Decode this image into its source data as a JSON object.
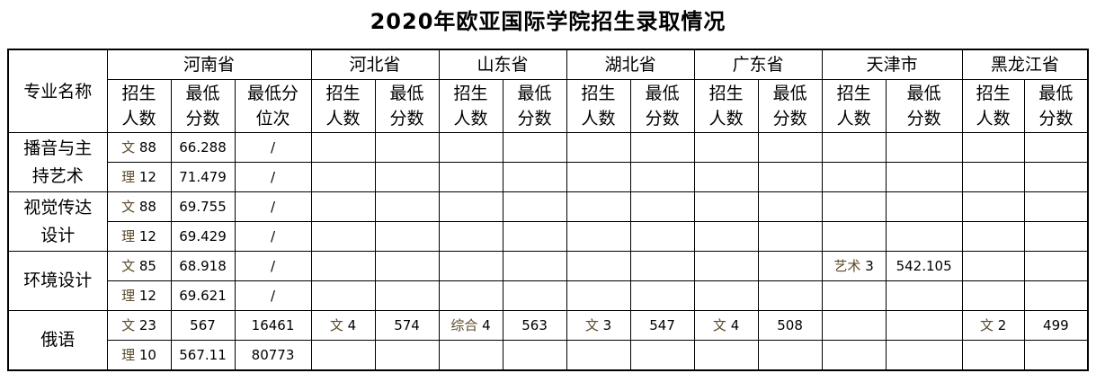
{
  "title": "2020年欧亚国际学院招生录取情况",
  "header": {
    "major_col": "专业名称",
    "provinces": [
      {
        "name": "河南省",
        "cols": [
          "招生\n人数",
          "最低\n分数",
          "最低分\n位次"
        ]
      },
      {
        "name": "河北省",
        "cols": [
          "招生\n人数",
          "最低\n分数"
        ]
      },
      {
        "name": "山东省",
        "cols": [
          "招生\n人数",
          "最低\n分数"
        ]
      },
      {
        "name": "湖北省",
        "cols": [
          "招生\n人数",
          "最低\n分数"
        ]
      },
      {
        "name": "广东省",
        "cols": [
          "招生\n人数",
          "最低\n分数"
        ]
      },
      {
        "name": "天津市",
        "cols": [
          "招生\n人数",
          "最低\n分数"
        ]
      },
      {
        "name": "黑龙江省",
        "cols": [
          "招生\n人数",
          "最低\n分数"
        ]
      }
    ]
  },
  "majors": [
    {
      "name": "播音与主\n持艺术",
      "rows": [
        [
          "文 88",
          "66.288",
          "/",
          "",
          "",
          "",
          "",
          "",
          "",
          "",
          "",
          "",
          "",
          "",
          ""
        ],
        [
          "理 12",
          "71.479",
          "/",
          "",
          "",
          "",
          "",
          "",
          "",
          "",
          "",
          "",
          "",
          "",
          ""
        ]
      ]
    },
    {
      "name": "视觉传达\n设计",
      "rows": [
        [
          "文 88",
          "69.755",
          "/",
          "",
          "",
          "",
          "",
          "",
          "",
          "",
          "",
          "",
          "",
          "",
          ""
        ],
        [
          "理 12",
          "69.429",
          "/",
          "",
          "",
          "",
          "",
          "",
          "",
          "",
          "",
          "",
          "",
          "",
          ""
        ]
      ]
    },
    {
      "name": "环境设计",
      "rows": [
        [
          "文 85",
          "68.918",
          "/",
          "",
          "",
          "",
          "",
          "",
          "",
          "",
          "",
          "艺术 3",
          "542.105",
          "",
          ""
        ],
        [
          "理 12",
          "69.621",
          "/",
          "",
          "",
          "",
          "",
          "",
          "",
          "",
          "",
          "",
          "",
          "",
          ""
        ]
      ]
    },
    {
      "name": "俄语",
      "rows": [
        [
          "文 23",
          "567",
          "16461",
          "文 4",
          "574",
          "综合 4",
          "563",
          "文 3",
          "547",
          "文 4",
          "508",
          "",
          "",
          "文 2",
          "499"
        ],
        [
          "理 10",
          "567.11",
          "80773",
          "",
          "",
          "",
          "",
          "",
          "",
          "",
          "",
          "",
          "",
          "",
          ""
        ]
      ]
    }
  ]
}
